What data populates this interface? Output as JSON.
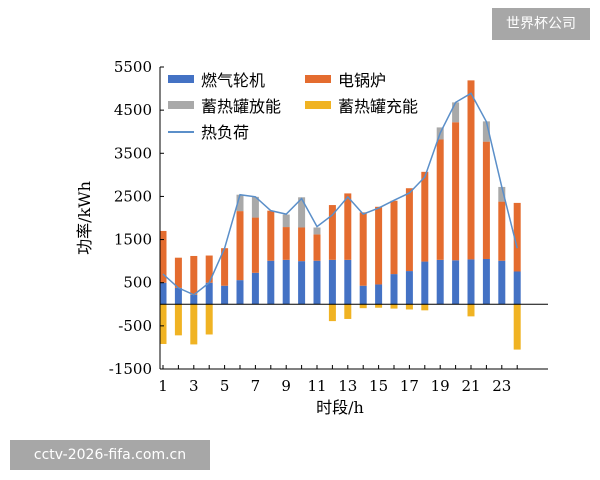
{
  "watermarks": {
    "top": "世界杯公司",
    "bottom": "cctv-2026-fifa.com.cn"
  },
  "chart_data": {
    "type": "bar",
    "stacked": true,
    "title": "",
    "xlabel": "时段/h",
    "ylabel": "功率/kWh",
    "x": [
      1,
      2,
      3,
      4,
      5,
      6,
      7,
      8,
      9,
      10,
      11,
      12,
      13,
      14,
      15,
      16,
      17,
      18,
      19,
      20,
      21,
      22,
      23,
      24
    ],
    "x_tick_labels": [
      "1",
      "3",
      "5",
      "7",
      "9",
      "11",
      "13",
      "15",
      "17",
      "19",
      "21",
      "23"
    ],
    "x_tick_values": [
      1,
      3,
      5,
      7,
      9,
      11,
      13,
      15,
      17,
      19,
      21,
      23
    ],
    "ylim": [
      -1500,
      5500
    ],
    "y_ticks": [
      -1500,
      -500,
      500,
      1500,
      2500,
      3500,
      4500,
      5500
    ],
    "y_tick_labels": [
      "-1500",
      "-500",
      "500",
      "1500",
      "2500",
      "3500",
      "4500",
      "5500"
    ],
    "grid": false,
    "legend_position": "top-left",
    "series": [
      {
        "name": "燃气轮机",
        "kind": "bar",
        "color": "#4472c4",
        "values": [
          500,
          380,
          220,
          500,
          430,
          560,
          730,
          1010,
          1030,
          1000,
          1010,
          1030,
          1030,
          430,
          460,
          700,
          770,
          990,
          1030,
          1020,
          1040,
          1050,
          1010,
          760
        ]
      },
      {
        "name": "电锅炉",
        "kind": "bar",
        "color": "#e46c2f",
        "values": [
          1200,
          700,
          900,
          630,
          870,
          1600,
          1280,
          1160,
          760,
          780,
          610,
          1270,
          1540,
          1700,
          1800,
          1700,
          1920,
          2080,
          2790,
          3200,
          4150,
          2720,
          1370,
          1590
        ]
      },
      {
        "name": "蓄热罐放能",
        "kind": "bar",
        "color": "#a9a9a9",
        "values": [
          0,
          0,
          0,
          0,
          0,
          380,
          480,
          0,
          290,
          700,
          160,
          0,
          0,
          0,
          0,
          0,
          0,
          0,
          280,
          460,
          0,
          470,
          340,
          0
        ]
      },
      {
        "name": "蓄热罐充能",
        "kind": "bar",
        "color": "#f0b323",
        "values": [
          -920,
          -720,
          -930,
          -700,
          0,
          0,
          0,
          0,
          0,
          0,
          0,
          -390,
          -340,
          -90,
          -80,
          -100,
          -120,
          -140,
          0,
          0,
          -280,
          0,
          0,
          -1050
        ]
      },
      {
        "name": "热负荷",
        "kind": "line",
        "color": "#5b8fc9",
        "values": [
          700,
          380,
          220,
          500,
          1300,
          2540,
          2490,
          2170,
          2090,
          2450,
          1800,
          2070,
          2490,
          2090,
          2230,
          2410,
          2580,
          2950,
          3970,
          4680,
          4890,
          4230,
          2720,
          1300
        ]
      }
    ]
  }
}
